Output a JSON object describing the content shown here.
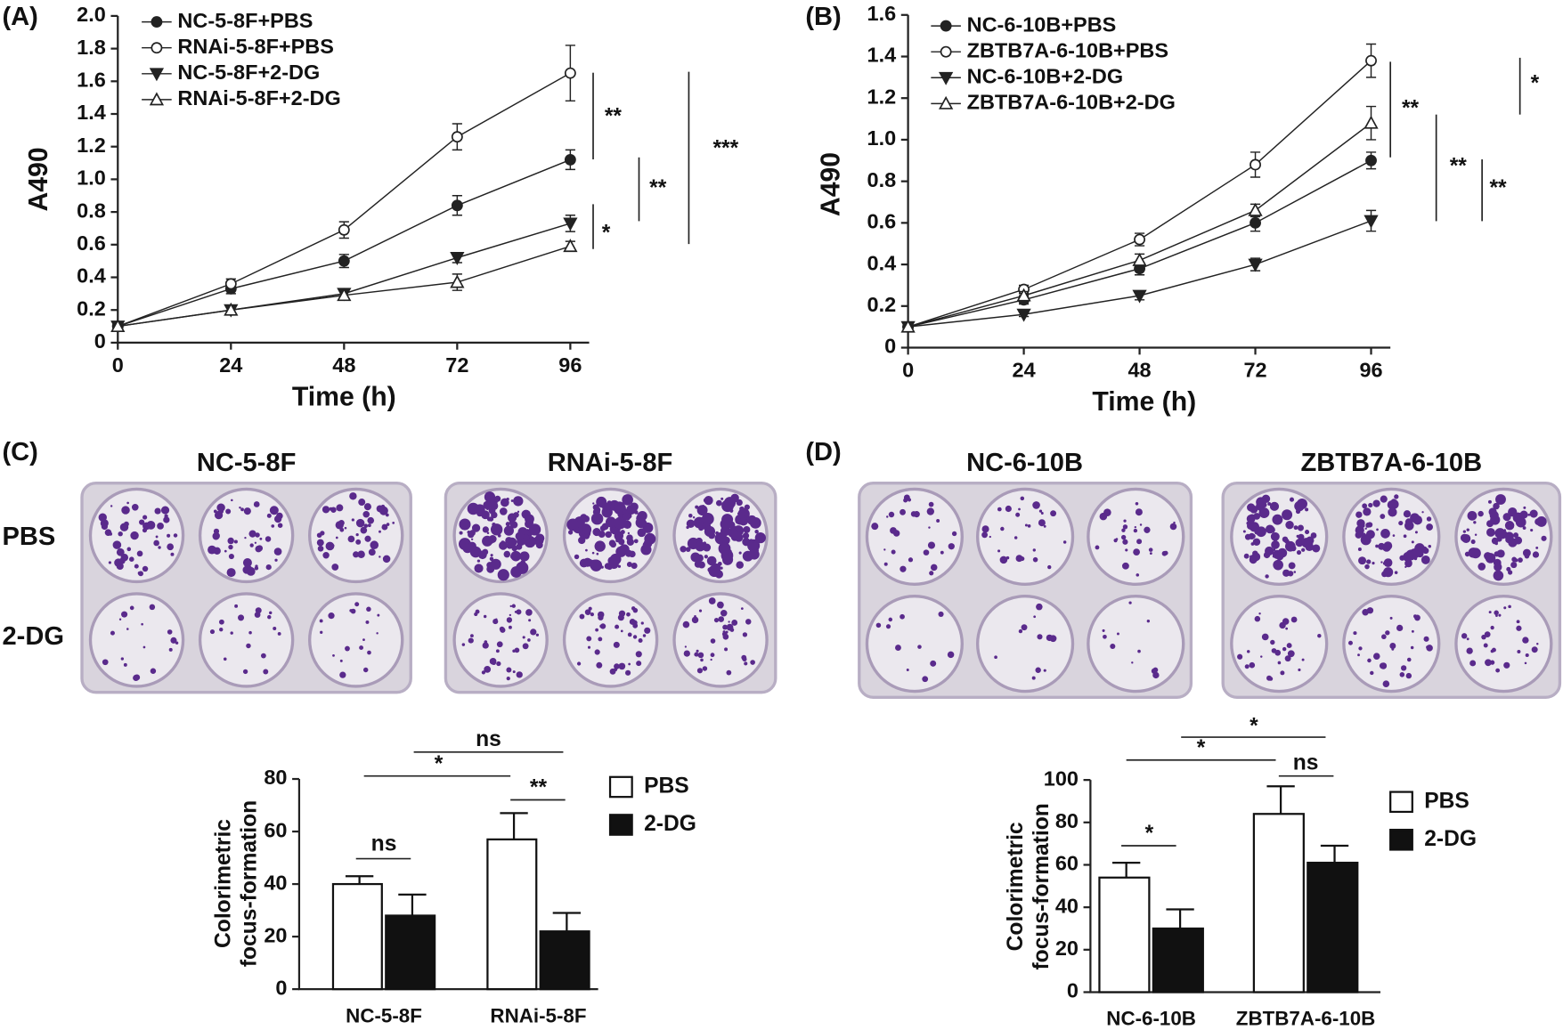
{
  "panels": [
    "(A)",
    "(B)",
    "(C)",
    "(D)"
  ],
  "photos": {
    "c_headers": [
      "NC-5-8F",
      "RNAi-5-8F"
    ],
    "d_headers": [
      "NC-6-10B",
      "ZBTB7A-6-10B"
    ],
    "rows": [
      "PBS",
      "2-DG"
    ]
  },
  "chart_data": [
    {
      "type": "line",
      "ylabel": "A490",
      "xlabel": "Time (h)",
      "x": [
        0,
        24,
        48,
        72,
        96
      ],
      "xlim": [
        0,
        100
      ],
      "xticks": [
        0,
        24,
        48,
        72,
        96
      ],
      "ylim": [
        0,
        2
      ],
      "yticks": [
        0,
        0.2,
        0.4,
        0.6,
        0.8,
        {
          "value": 1,
          "label": "1.0"
        },
        1.2,
        1.4,
        1.6,
        1.8,
        {
          "value": 2,
          "label": "2.0"
        }
      ],
      "series": [
        {
          "name": "NC-5-8F+PBS",
          "marker": "circle",
          "filled": true,
          "color": "#222",
          "values": [
            0.1,
            0.33,
            0.5,
            0.84,
            1.12
          ],
          "errors": [
            0,
            0.03,
            0.04,
            0.06,
            0.06
          ]
        },
        {
          "name": "RNAi-5-8F+PBS",
          "marker": "circle",
          "filled": false,
          "color": "#222",
          "values": [
            0.1,
            0.36,
            0.69,
            1.26,
            1.65
          ],
          "errors": [
            0,
            0.03,
            0.05,
            0.08,
            0.17
          ]
        },
        {
          "name": "NC-5-8F+2-DG",
          "marker": "triangle-down",
          "filled": true,
          "color": "#222",
          "values": [
            0.1,
            0.2,
            0.3,
            0.52,
            0.73
          ],
          "errors": [
            0,
            0.02,
            0.03,
            0.03,
            0.05
          ]
        },
        {
          "name": "RNAi-5-8F+2-DG",
          "marker": "triangle-up",
          "filled": false,
          "color": "#222",
          "values": [
            0.1,
            0.2,
            0.29,
            0.37,
            0.59
          ],
          "errors": [
            0,
            0.02,
            0.03,
            0.05,
            0.03
          ]
        }
      ],
      "annotations": [
        "**",
        "**",
        "*",
        "***"
      ]
    },
    {
      "type": "line",
      "ylabel": "A490",
      "xlabel": "Time (h)",
      "x": [
        0,
        24,
        48,
        72,
        96
      ],
      "xlim": [
        0,
        100
      ],
      "xticks": [
        0,
        24,
        48,
        72,
        96
      ],
      "ylim": [
        0,
        1.6
      ],
      "yticks": [
        0,
        0.2,
        0.4,
        0.6,
        0.8,
        {
          "value": 1,
          "label": "1.0"
        },
        1.2,
        1.4,
        1.6
      ],
      "series": [
        {
          "name": "NC-6-10B+PBS",
          "marker": "circle",
          "filled": true,
          "color": "#222",
          "values": [
            0.1,
            0.23,
            0.38,
            0.6,
            0.9
          ],
          "errors": [
            0,
            0.02,
            0.03,
            0.04,
            0.04
          ]
        },
        {
          "name": "ZBTB7A-6-10B+PBS",
          "marker": "circle",
          "filled": false,
          "color": "#222",
          "values": [
            0.1,
            0.28,
            0.52,
            0.88,
            1.38
          ],
          "errors": [
            0,
            0.02,
            0.03,
            0.06,
            0.08
          ]
        },
        {
          "name": "NC-6-10B+2-DG",
          "marker": "triangle-down",
          "filled": true,
          "color": "#222",
          "values": [
            0.1,
            0.16,
            0.25,
            0.4,
            0.61
          ],
          "errors": [
            0,
            0.01,
            0.02,
            0.03,
            0.05
          ]
        },
        {
          "name": "ZBTB7A-6-10B+2-DG",
          "marker": "triangle-up",
          "filled": false,
          "color": "#222",
          "values": [
            0.1,
            0.25,
            0.42,
            0.66,
            1.08
          ],
          "errors": [
            0,
            0.02,
            0.03,
            0.03,
            0.08
          ]
        }
      ],
      "annotations": [
        "**",
        "*",
        "**",
        "**"
      ]
    },
    {
      "type": "bar",
      "ylabel": [
        "Colorimetric",
        "focus-formation"
      ],
      "categories": [
        "NC-5-8F",
        "RNAi-5-8F"
      ],
      "ylim": [
        0,
        80
      ],
      "yticks": [
        0,
        20,
        40,
        60,
        80
      ],
      "series": [
        {
          "name": "PBS",
          "color": "#ffffff",
          "values": [
            40,
            57
          ],
          "errors": [
            3,
            10
          ]
        },
        {
          "name": "2-DG",
          "color": "#111111",
          "values": [
            28,
            22
          ],
          "errors": [
            8,
            7
          ]
        }
      ],
      "annotations": [
        "ns",
        "*",
        "ns",
        "**"
      ]
    },
    {
      "type": "bar",
      "ylabel": [
        "Colorimetric",
        "focus-formation"
      ],
      "categories": [
        "NC-6-10B",
        "ZBTB7A-6-10B"
      ],
      "ylim": [
        0,
        100
      ],
      "yticks": [
        0,
        20,
        40,
        60,
        80,
        100
      ],
      "series": [
        {
          "name": "PBS",
          "color": "#ffffff",
          "values": [
            54,
            84
          ],
          "errors": [
            7,
            13
          ]
        },
        {
          "name": "2-DG",
          "color": "#111111",
          "values": [
            30,
            61
          ],
          "errors": [
            9,
            8
          ]
        }
      ],
      "annotations": [
        "*",
        "*",
        "*",
        "ns"
      ]
    }
  ]
}
